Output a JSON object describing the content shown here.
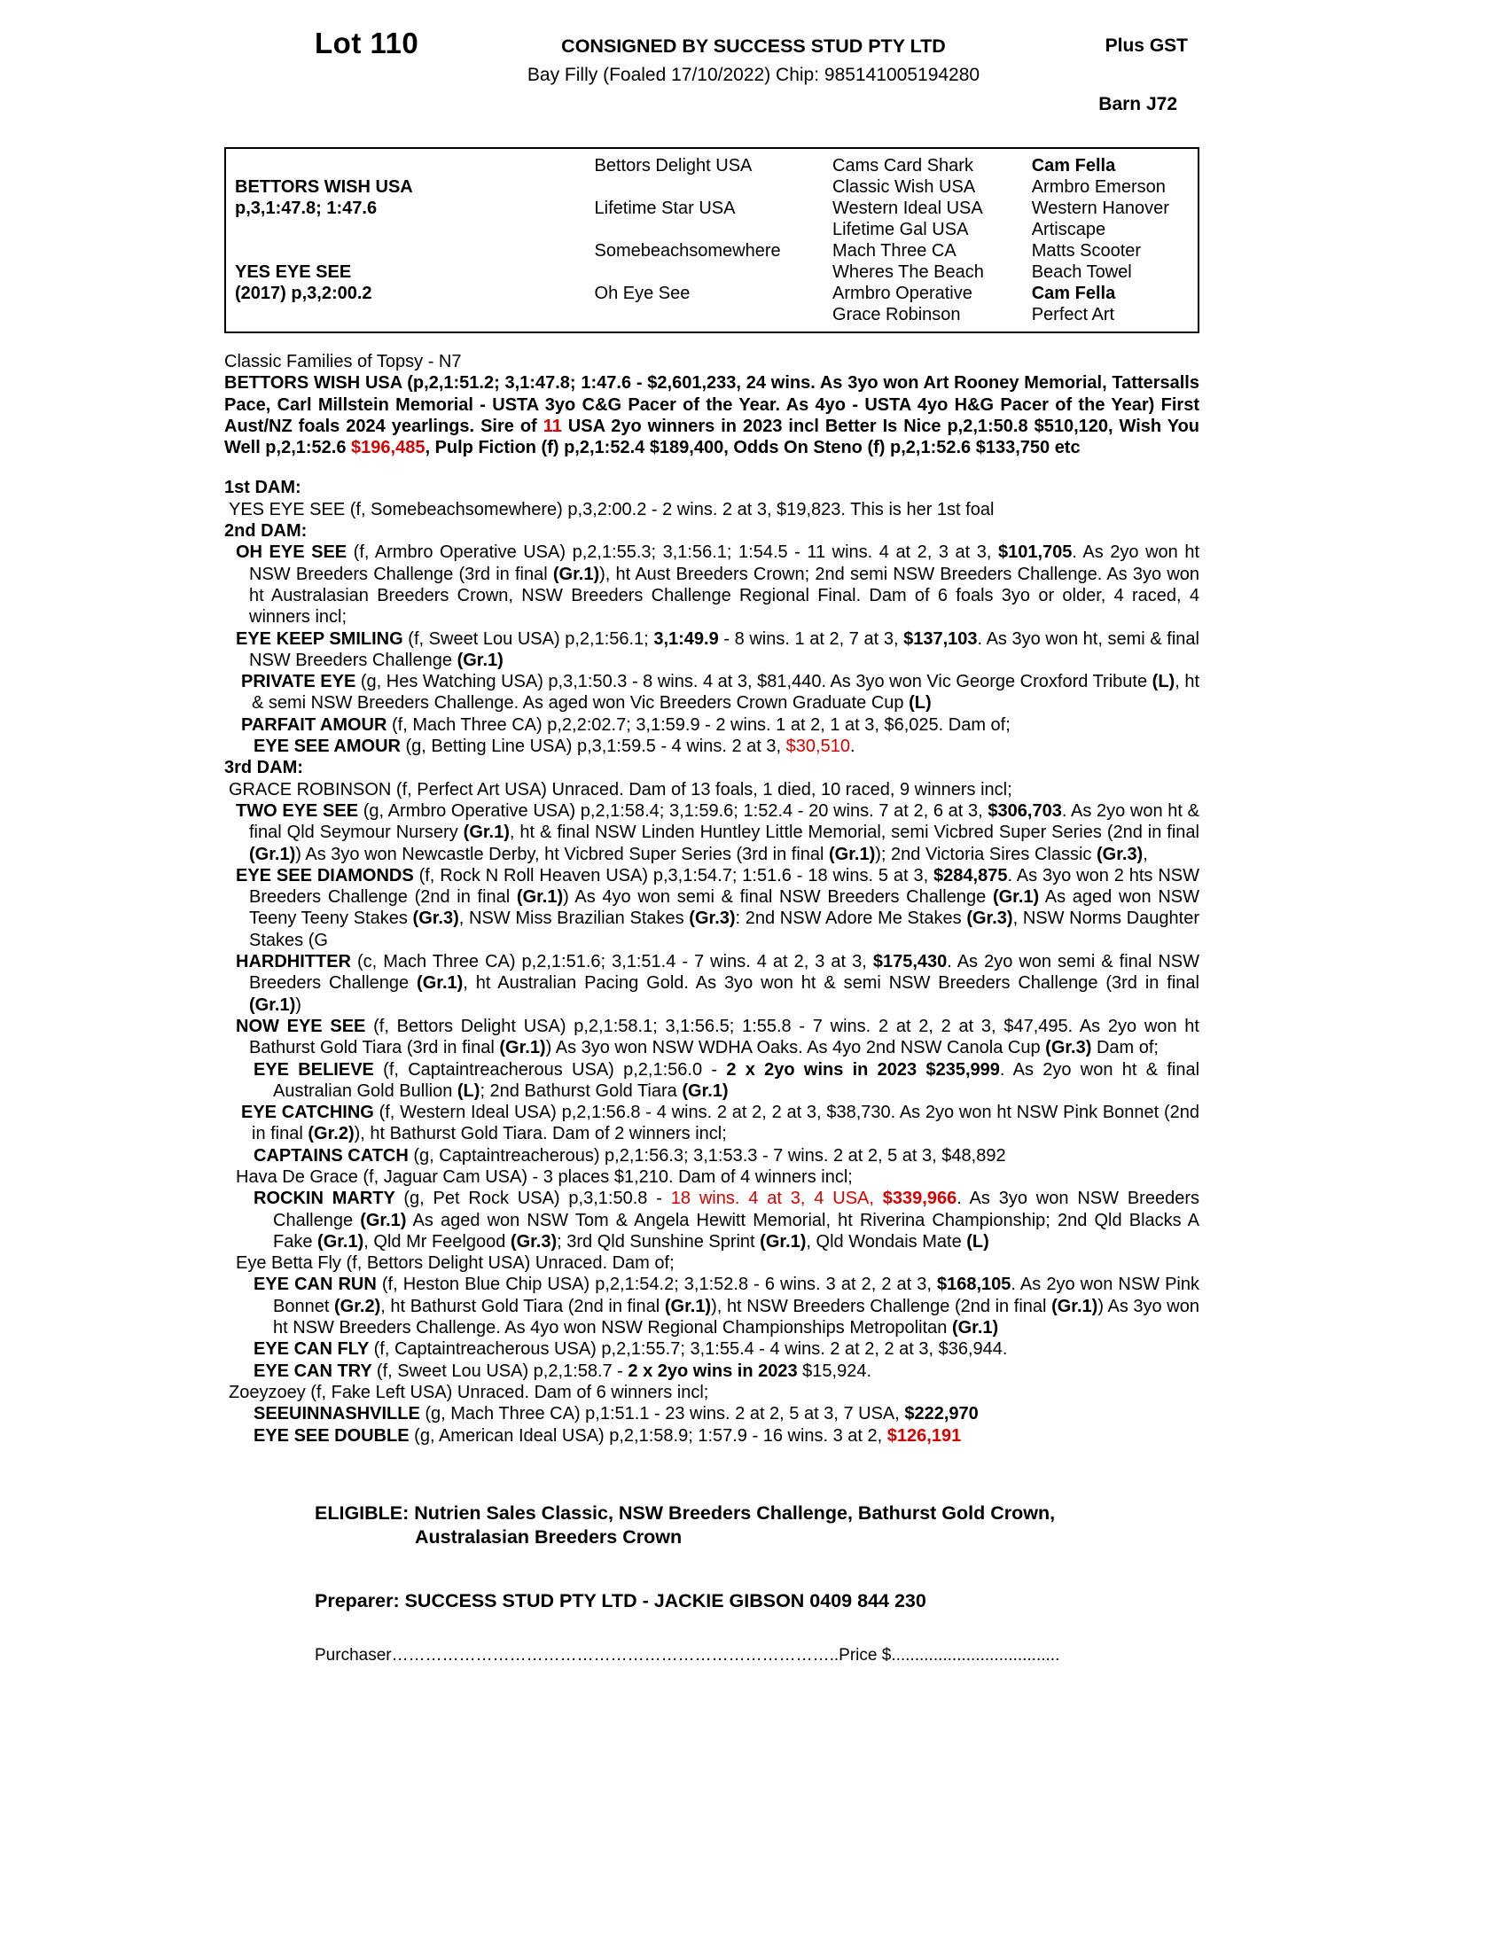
{
  "colors": {
    "red": "#d60000",
    "text": "#000000"
  },
  "header": {
    "lot": "Lot 110",
    "consigned": "CONSIGNED BY SUCCESS STUD PTY LTD",
    "details": "Bay Filly (Foaled 17/10/2022) Chip: 985141005194280",
    "plus_gst": "Plus GST",
    "barn": "Barn J72"
  },
  "pedigree_table": {
    "rows": [
      [
        "",
        "Bettors Delight USA",
        "Cams Card Shark",
        {
          "t": "Cam Fella",
          "b": true
        }
      ],
      [
        {
          "t": "BETTORS WISH USA",
          "b": true
        },
        "",
        "Classic Wish USA",
        "Armbro Emerson"
      ],
      [
        {
          "t": "p,3,1:47.8; 1:47.6",
          "b": true
        },
        "Lifetime Star USA",
        "Western Ideal USA",
        "Western Hanover"
      ],
      [
        "",
        "",
        "Lifetime Gal USA",
        "Artiscape"
      ],
      [
        "",
        "Somebeachsomewhere",
        "Mach Three CA",
        "Matts Scooter"
      ],
      [
        {
          "t": "YES EYE SEE",
          "b": true
        },
        "",
        "Wheres The Beach",
        "Beach Towel"
      ],
      [
        {
          "t": "(2017) p,3,2:00.2",
          "b": true
        },
        "Oh Eye See",
        "Armbro Operative",
        {
          "t": "Cam Fella",
          "b": true
        }
      ],
      [
        "",
        "",
        "Grace Robinson",
        "Perfect Art"
      ]
    ]
  },
  "family_line": "Classic Families of Topsy - N7",
  "body": {
    "paragraphs": [
      {
        "name": "sire-paragraph",
        "bold": true,
        "justify": true,
        "segments": [
          {
            "t": "BETTORS WISH USA (p,2,1:51.2; 3,1:47.8; 1:47.6 - $2,601,233, 24 wins. As 3yo won Art Rooney Memorial, Tattersalls Pace, Carl Millstein Memorial - USTA 3yo C&G Pacer of the Year. As 4yo - USTA 4yo H&G Pacer of the Year) First Aust/NZ foals 2024 yearlings. Sire of "
          },
          {
            "t": "11",
            "r": true
          },
          {
            "t": " USA 2yo winners in 2023 incl Better Is Nice p,2,1:50.8 $510,120, Wish You Well p,2,1:52.6 "
          },
          {
            "t": "$196,485",
            "r": true
          },
          {
            "t": ", Pulp Fiction (f) p,2,1:52.4 $189,400, Odds On Steno (f) p,2,1:52.6 $133,750 etc"
          }
        ]
      },
      {
        "name": "dam1-header",
        "bold": true,
        "gap": true,
        "text": "1st DAM:"
      },
      {
        "name": "entry-yes-eye-see",
        "indent": 1,
        "justify": true,
        "segments": [
          {
            "t": "YES EYE SEE (f, Somebeachsomewhere) p,3,2:00.2 - 2 wins. 2 at 3, $19,823. This is her 1st foal"
          }
        ]
      },
      {
        "name": "dam2-header",
        "bold": true,
        "text": "2nd DAM:"
      },
      {
        "name": "entry-oh-eye-see",
        "indent": 2,
        "hang": true,
        "justify": true,
        "segments": [
          {
            "t": "OH EYE SEE ",
            "b": true
          },
          {
            "t": "(f, Armbro Operative USA) p,2,1:55.3; 3,1:56.1; 1:54.5 - 11 wins. 4 at 2, 3 at 3, "
          },
          {
            "t": "$101,705",
            "b": true
          },
          {
            "t": ". As 2yo won ht NSW Breeders Challenge (3rd in final "
          },
          {
            "t": "(Gr.1)",
            "b": true
          },
          {
            "t": "), ht Aust Breeders Crown; 2nd semi NSW Breeders Challenge. As 3yo won ht Australasian Breeders Crown, NSW Breeders Challenge Regional Final. Dam of 6 foals 3yo or older, 4 raced, 4 winners incl;"
          }
        ]
      },
      {
        "name": "entry-eye-keep-smiling",
        "indent": 2,
        "hang": true,
        "justify": true,
        "segments": [
          {
            "t": "EYE KEEP SMILING ",
            "b": true
          },
          {
            "t": "(f, Sweet Lou USA) p,2,1:56.1; "
          },
          {
            "t": "3,1:49.9",
            "b": true
          },
          {
            "t": " - 8 wins. 1 at 2, 7 at 3, "
          },
          {
            "t": "$137,103",
            "b": true
          },
          {
            "t": ". As 3yo won ht, semi & final NSW Breeders Challenge "
          },
          {
            "t": "(Gr.1)",
            "b": true
          }
        ]
      },
      {
        "name": "entry-private-eye",
        "indent": 3,
        "hang": true,
        "justify": true,
        "segments": [
          {
            "t": "PRIVATE EYE ",
            "b": true
          },
          {
            "t": "(g, Hes Watching USA) p,3,1:50.3 - 8 wins. 4 at 3, $81,440. As 3yo won Vic George Croxford Tribute "
          },
          {
            "t": "(L)",
            "b": true
          },
          {
            "t": ", ht & semi NSW Breeders Challenge. As aged won Vic Breeders Crown Graduate Cup "
          },
          {
            "t": "(L)",
            "b": true
          }
        ]
      },
      {
        "name": "entry-parfait-amour",
        "indent": 3,
        "hang": true,
        "justify": true,
        "segments": [
          {
            "t": "PARFAIT AMOUR ",
            "b": true
          },
          {
            "t": "(f, Mach Three CA) p,2,2:02.7; 3,1:59.9 - 2 wins. 1 at 2, 1 at 3, $6,025. Dam of;"
          }
        ]
      },
      {
        "name": "entry-eye-see-amour",
        "indent": 4,
        "hang": true,
        "segments": [
          {
            "t": "EYE SEE AMOUR ",
            "b": true
          },
          {
            "t": "(g, Betting Line USA) p,3,1:59.5 - 4 wins. 2 at 3, "
          },
          {
            "t": "$30,510",
            "r": true
          },
          {
            "t": "."
          }
        ]
      },
      {
        "name": "dam3-header",
        "bold": true,
        "text": "3rd DAM:"
      },
      {
        "name": "entry-grace-robinson",
        "indent": 1,
        "justify": true,
        "segments": [
          {
            "t": "GRACE ROBINSON (f, Perfect Art USA) Unraced. Dam of 13 foals, 1 died, 10 raced, 9 winners incl;"
          }
        ]
      },
      {
        "name": "entry-two-eye-see",
        "indent": 2,
        "hang": true,
        "justify": true,
        "segments": [
          {
            "t": "TWO EYE SEE ",
            "b": true
          },
          {
            "t": "(g, Armbro Operative USA) p,2,1:58.4; 3,1:59.6; 1:52.4 - 20 wins. 7 at 2, 6 at 3, "
          },
          {
            "t": "$306,703",
            "b": true
          },
          {
            "t": ". As 2yo won ht & final Qld Seymour Nursery "
          },
          {
            "t": "(Gr.1)",
            "b": true
          },
          {
            "t": ", ht & final NSW Linden Huntley Little Memorial, semi Vicbred Super Series (2nd in final "
          },
          {
            "t": "(Gr.1)",
            "b": true
          },
          {
            "t": ") As 3yo won Newcastle Derby, ht Vicbred Super Series (3rd in final "
          },
          {
            "t": "(Gr.1)",
            "b": true
          },
          {
            "t": "); 2nd Victoria Sires Classic "
          },
          {
            "t": "(Gr.3)",
            "b": true
          },
          {
            "t": ","
          }
        ]
      },
      {
        "name": "entry-eye-see-diamonds",
        "indent": 2,
        "hang": true,
        "justify": true,
        "segments": [
          {
            "t": "EYE SEE DIAMONDS ",
            "b": true
          },
          {
            "t": "(f, Rock N Roll Heaven USA) p,3,1:54.7; 1:51.6 - 18 wins. 5 at 3, "
          },
          {
            "t": "$284,875",
            "b": true
          },
          {
            "t": ". As 3yo won 2 hts NSW Breeders Challenge (2nd in final "
          },
          {
            "t": "(Gr.1)",
            "b": true
          },
          {
            "t": ") As 4yo won semi & final NSW Breeders Challenge "
          },
          {
            "t": "(Gr.1)",
            "b": true
          },
          {
            "t": " As aged won NSW Teeny Teeny Stakes "
          },
          {
            "t": "(Gr.3)",
            "b": true
          },
          {
            "t": ", NSW Miss Brazilian Stakes "
          },
          {
            "t": "(Gr.3)",
            "b": true
          },
          {
            "t": ": 2nd NSW Adore Me Stakes "
          },
          {
            "t": "(Gr.3)",
            "b": true
          },
          {
            "t": ", NSW Norms Daughter Stakes (G"
          }
        ]
      },
      {
        "name": "entry-hardhitter",
        "indent": 2,
        "hang": true,
        "justify": true,
        "segments": [
          {
            "t": "HARDHITTER ",
            "b": true
          },
          {
            "t": "(c, Mach Three CA) p,2,1:51.6; 3,1:51.4 - 7 wins. 4 at 2, 3 at 3, "
          },
          {
            "t": "$175,430",
            "b": true
          },
          {
            "t": ". As 2yo won semi & final NSW Breeders Challenge "
          },
          {
            "t": "(Gr.1)",
            "b": true
          },
          {
            "t": ", ht Australian Pacing Gold. As 3yo won ht & semi NSW Breeders Challenge (3rd in final "
          },
          {
            "t": "(Gr.1)",
            "b": true
          },
          {
            "t": ")"
          }
        ]
      },
      {
        "name": "entry-now-eye-see",
        "indent": 2,
        "hang": true,
        "justify": true,
        "segments": [
          {
            "t": "NOW EYE SEE ",
            "b": true
          },
          {
            "t": "(f, Bettors Delight USA) p,2,1:58.1; 3,1:56.5; 1:55.8 - 7 wins. 2 at 2, 2 at 3, $47,495. As 2yo won ht Bathurst Gold Tiara (3rd in final "
          },
          {
            "t": "(Gr.1)",
            "b": true
          },
          {
            "t": ") As 3yo won NSW WDHA Oaks. As 4yo 2nd NSW Canola Cup "
          },
          {
            "t": "(Gr.3)",
            "b": true
          },
          {
            "t": " Dam of;"
          }
        ]
      },
      {
        "name": "entry-eye-believe",
        "indent": 4,
        "hang": true,
        "justify": true,
        "segments": [
          {
            "t": "EYE BELIEVE ",
            "b": true
          },
          {
            "t": "(f, Captaintreacherous USA) p,2,1:56.0 - "
          },
          {
            "t": "2 x 2yo wins in 2023 $235,999",
            "b": true
          },
          {
            "t": ". As 2yo won ht & final Australian Gold Bullion "
          },
          {
            "t": "(L)",
            "b": true
          },
          {
            "t": "; 2nd Bathurst Gold Tiara "
          },
          {
            "t": "(Gr.1)",
            "b": true
          }
        ]
      },
      {
        "name": "entry-eye-catching",
        "indent": 3,
        "hang": true,
        "justify": true,
        "segments": [
          {
            "t": "EYE CATCHING ",
            "b": true
          },
          {
            "t": "(f, Western Ideal USA) p,2,1:56.8 - 4 wins. 2 at 2, 2 at 3, $38,730. As 2yo won ht NSW Pink Bonnet (2nd in final "
          },
          {
            "t": "(Gr.2)",
            "b": true
          },
          {
            "t": "), ht Bathurst Gold Tiara. Dam of 2 winners incl;"
          }
        ]
      },
      {
        "name": "entry-captains-catch",
        "indent": 4,
        "hang": true,
        "segments": [
          {
            "t": "CAPTAINS CATCH ",
            "b": true
          },
          {
            "t": "(g, Captaintreacherous) p,2,1:56.3; 3,1:53.3 - 7 wins. 2 at 2, 5 at 3, $48,892"
          }
        ]
      },
      {
        "name": "entry-hava-de-grace",
        "indent": 2,
        "justify": true,
        "segments": [
          {
            "t": "Hava De Grace (f, Jaguar Cam USA) - 3 places $1,210. Dam of 4 winners incl;"
          }
        ]
      },
      {
        "name": "entry-rockin-marty",
        "indent": 4,
        "hang": true,
        "justify": true,
        "segments": [
          {
            "t": "ROCKIN MARTY ",
            "b": true
          },
          {
            "t": "(g, Pet Rock USA) p,3,1:50.8 - "
          },
          {
            "t": "18 wins. 4 at 3, 4 USA, ",
            "r": true
          },
          {
            "t": "$339,966",
            "b": true,
            "r": true
          },
          {
            "t": ". As 3yo won NSW Breeders Challenge "
          },
          {
            "t": "(Gr.1)",
            "b": true
          },
          {
            "t": " As aged won NSW Tom & Angela Hewitt Memorial, ht Riverina Championship; 2nd Qld Blacks A Fake "
          },
          {
            "t": "(Gr.1)",
            "b": true
          },
          {
            "t": ", Qld Mr Feelgood "
          },
          {
            "t": "(Gr.3)",
            "b": true
          },
          {
            "t": "; 3rd Qld Sunshine Sprint "
          },
          {
            "t": "(Gr.1)",
            "b": true
          },
          {
            "t": ", Qld Wondais Mate "
          },
          {
            "t": "(L)",
            "b": true
          }
        ]
      },
      {
        "name": "entry-eye-betta-fly",
        "indent": 2,
        "segments": [
          {
            "t": "Eye Betta Fly (f, Bettors Delight USA) Unraced. Dam of;"
          }
        ]
      },
      {
        "name": "entry-eye-can-run",
        "indent": 4,
        "hang": true,
        "justify": true,
        "segments": [
          {
            "t": "EYE CAN RUN ",
            "b": true
          },
          {
            "t": "(f, Heston Blue Chip USA) p,2,1:54.2; 3,1:52.8 - 6 wins. 3 at 2, 2 at 3, "
          },
          {
            "t": "$168,105",
            "b": true
          },
          {
            "t": ". As 2yo won NSW Pink Bonnet "
          },
          {
            "t": "(Gr.2)",
            "b": true
          },
          {
            "t": ", ht Bathurst Gold Tiara (2nd in final "
          },
          {
            "t": "(Gr.1)",
            "b": true
          },
          {
            "t": "), ht NSW Breeders Challenge (2nd in final "
          },
          {
            "t": "(Gr.1)",
            "b": true
          },
          {
            "t": ") As 3yo won ht NSW Breeders Challenge. As 4yo won NSW Regional Championships Metropolitan "
          },
          {
            "t": "(Gr.1)",
            "b": true
          }
        ]
      },
      {
        "name": "entry-eye-can-fly",
        "indent": 4,
        "hang": true,
        "segments": [
          {
            "t": "EYE CAN FLY ",
            "b": true
          },
          {
            "t": "(f, Captaintreacherous USA) p,2,1:55.7; 3,1:55.4 - 4 wins. 2 at 2, 2 at 3, $36,944."
          }
        ]
      },
      {
        "name": "entry-eye-can-try",
        "indent": 4,
        "hang": true,
        "segments": [
          {
            "t": "EYE CAN TRY ",
            "b": true
          },
          {
            "t": "(f, Sweet Lou USA) p,2,1:58.7 - "
          },
          {
            "t": "2 x 2yo wins in 2023",
            "b": true
          },
          {
            "t": " $15,924."
          }
        ]
      },
      {
        "name": "entry-zoeyzoey",
        "indent": 1,
        "segments": [
          {
            "t": "Zoeyzoey (f, Fake Left USA) Unraced. Dam of 6 winners incl;"
          }
        ]
      },
      {
        "name": "entry-seeuinnashville",
        "indent": 4,
        "hang": true,
        "segments": [
          {
            "t": "SEEUINNASHVILLE ",
            "b": true
          },
          {
            "t": "(g, Mach Three CA) p,1:51.1 - 23 wins. 2 at 2, 5 at 3, 7 USA, "
          },
          {
            "t": "$222,970",
            "b": true
          }
        ]
      },
      {
        "name": "entry-eye-see-double",
        "indent": 4,
        "hang": true,
        "segments": [
          {
            "t": "EYE SEE DOUBLE ",
            "b": true
          },
          {
            "t": "(g, American Ideal USA) p,2,1:58.9; 1:57.9 - 16 wins. 3 at 2, "
          },
          {
            "t": "$126,191",
            "b": true,
            "r": true
          }
        ]
      }
    ]
  },
  "footer": {
    "eligible_label": "ELIGIBLE: ",
    "eligible_line1": "Nutrien Sales Classic, NSW Breeders Challenge, Bathurst Gold Crown,",
    "eligible_line2": "Australasian Breeders Crown",
    "preparer": "Preparer: SUCCESS STUD PTY LTD - JACKIE GIBSON 0409 844 230",
    "purchaser_label": "Purchaser",
    "purchaser_dots": "……………………………………………………………………..",
    "price_label": "Price $",
    "price_dots": "...................................."
  }
}
